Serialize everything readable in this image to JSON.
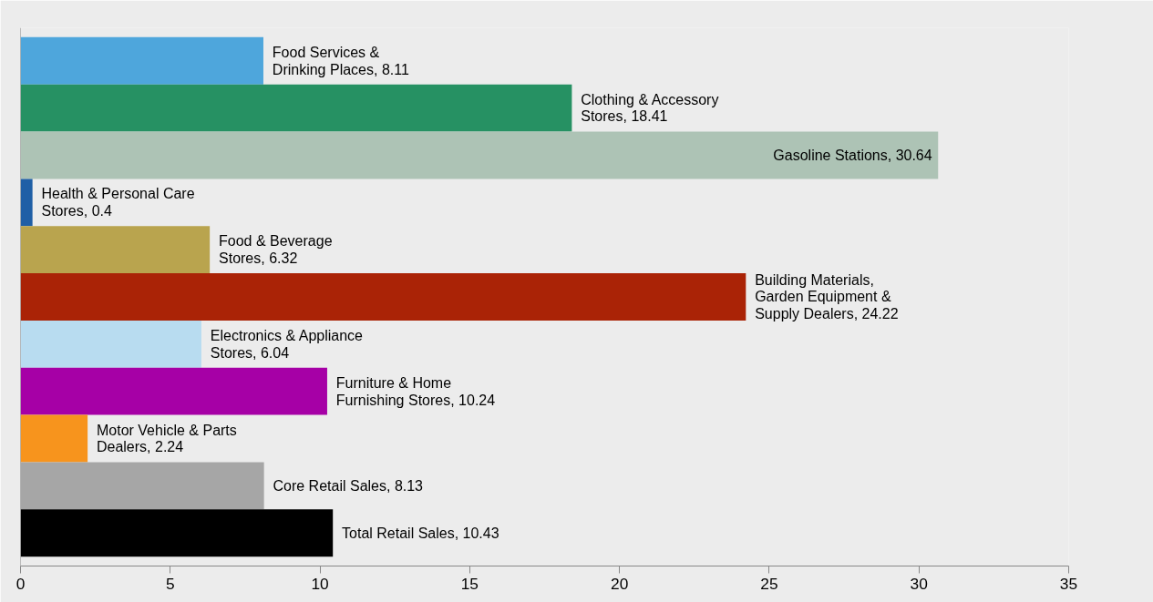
{
  "chart_data": {
    "type": "bar",
    "orientation": "horizontal",
    "categories": [
      null,
      null,
      null,
      null,
      null,
      null,
      null,
      null,
      null,
      null,
      null
    ],
    "values": [
      8.11,
      18.41,
      30.64,
      0.4,
      6.32,
      24.22,
      6.04,
      10.24,
      2.24,
      8.13,
      10.43
    ],
    "colors": [
      "#4ea6dc",
      "#269163",
      "#adc3b5",
      "#1f5fa6",
      "#b9a44e",
      "#aa2306",
      "#b8dcf0",
      "#a600a6",
      "#f7941d",
      "#a6a6a6",
      "#000000"
    ],
    "value_labels": [
      "Food Services &\nDrinking Places, 8.11",
      "Clothing & Accessory\nStores, 18.41",
      "Gasoline Stations, 30.64",
      "Health & Personal Care\nStores, 0.4",
      "Food & Beverage\nStores, 6.32",
      "Building Materials,\nGarden Equipment &\nSupply Dealers, 24.22",
      "Electronics & Appliance\nStores, 6.04",
      "Furniture & Home\nFurnishing Stores, 10.24",
      "Motor Vehicle & Parts\nDealers, 2.24",
      "Core Retail Sales, 8.13",
      "Total Retail Sales, 10.43"
    ],
    "xlim": [
      0,
      35
    ],
    "xticks": [
      0,
      5,
      10,
      15,
      20,
      25,
      30,
      35
    ],
    "tick_labels": "x",
    "grid": false
  }
}
